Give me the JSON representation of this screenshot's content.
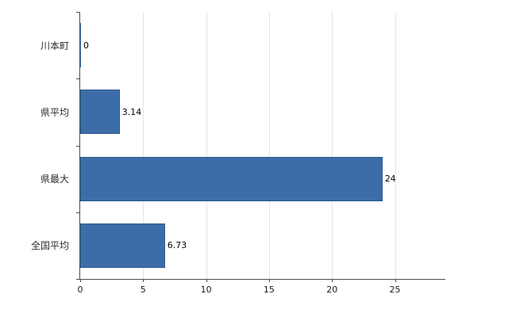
{
  "chart_data": {
    "type": "bar",
    "orientation": "horizontal",
    "title": "",
    "xlabel": "",
    "ylabel": "",
    "categories": [
      "川本町",
      "県平均",
      "県最大",
      "全国平均"
    ],
    "values": [
      0,
      3.14,
      24,
      6.73
    ],
    "value_labels": [
      "0",
      "3.14",
      "24",
      "6.73"
    ],
    "x_ticks": [
      0,
      5,
      10,
      15,
      20,
      25
    ],
    "xlim": [
      0,
      29
    ],
    "grid": true,
    "legend": "none",
    "bar_color": "#3d6da8",
    "bar_border_color": "#2e5b8f",
    "axis_color": "#4d4d4d",
    "gridline_color": "#e4e4e4"
  }
}
